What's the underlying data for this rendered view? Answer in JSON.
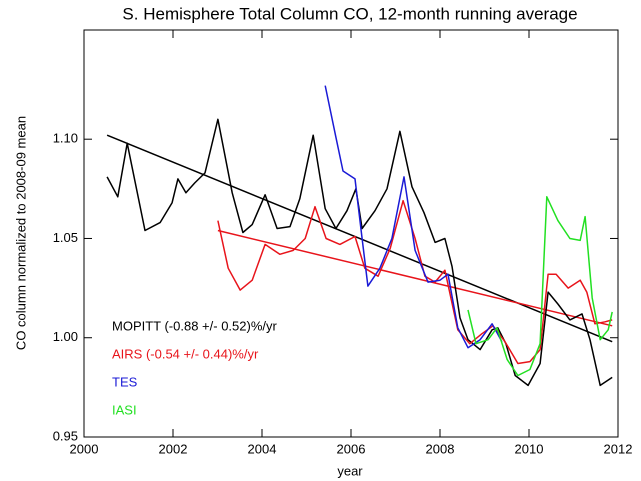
{
  "chart_data": {
    "type": "line",
    "title": "S. Hemisphere Total Column CO, 12-month running average",
    "x_label": "year",
    "y_label": "CO column normalized to 2008-09 mean",
    "xlim": [
      2000,
      2012
    ],
    "xticks": [
      2000,
      2002,
      2004,
      2006,
      2008,
      2010,
      2012
    ],
    "ylim": [
      0.95,
      1.155
    ],
    "yticks": [
      {
        "value": 0.95,
        "label": "0.95"
      },
      {
        "value": 1.0,
        "label": "1.00"
      },
      {
        "value": 1.05,
        "label": "1.05"
      },
      {
        "value": 1.1,
        "label": "1.10"
      }
    ],
    "series": [
      {
        "name": "MOPITT (-0.88 +/- 0.52)%/yr",
        "color": "#000000",
        "x": [
          2000.52,
          2000.76,
          2000.97,
          2001.37,
          2001.71,
          2001.98,
          2002.11,
          2002.29,
          2002.49,
          2002.72,
          2003.01,
          2003.33,
          2003.57,
          2003.78,
          2004.07,
          2004.34,
          2004.63,
          2004.85,
          2005.15,
          2005.42,
          2005.66,
          2005.91,
          2006.11,
          2006.25,
          2006.54,
          2006.81,
          2007.1,
          2007.37,
          2007.64,
          2007.89,
          2008.11,
          2008.27,
          2008.45,
          2008.63,
          2008.9,
          2009.17,
          2009.3,
          2009.48,
          2009.69,
          2009.98,
          2010.25,
          2010.43,
          2010.65,
          2010.92,
          2011.19,
          2011.37,
          2011.6,
          2011.87
        ],
        "values": [
          1.081,
          1.071,
          1.098,
          1.054,
          1.058,
          1.068,
          1.08,
          1.073,
          1.078,
          1.083,
          1.11,
          1.073,
          1.053,
          1.057,
          1.072,
          1.055,
          1.056,
          1.07,
          1.102,
          1.065,
          1.055,
          1.064,
          1.075,
          1.055,
          1.064,
          1.075,
          1.104,
          1.076,
          1.063,
          1.048,
          1.05,
          1.036,
          1.01,
          0.999,
          0.994,
          1.004,
          1.005,
          0.997,
          0.981,
          0.976,
          0.987,
          1.023,
          1.017,
          1.009,
          1.012,
          0.999,
          0.976,
          0.98
        ]
      },
      {
        "name": "AIRS (-0.54 +/- 0.44)%/yr",
        "color": "#e8141b",
        "x": [
          2003.01,
          2003.24,
          2003.51,
          2003.78,
          2004.07,
          2004.4,
          2004.7,
          2004.97,
          2005.19,
          2005.44,
          2005.75,
          2006.09,
          2006.31,
          2006.61,
          2006.88,
          2007.17,
          2007.44,
          2007.66,
          2007.89,
          2008.11,
          2008.4,
          2008.67,
          2008.94,
          2009.19,
          2009.46,
          2009.75,
          2010.02,
          2010.25,
          2010.43,
          2010.61,
          2010.88,
          2011.15,
          2011.3,
          2011.48,
          2011.71,
          2011.87
        ],
        "values": [
          1.059,
          1.035,
          1.024,
          1.029,
          1.047,
          1.042,
          1.044,
          1.05,
          1.066,
          1.05,
          1.047,
          1.051,
          1.035,
          1.031,
          1.045,
          1.069,
          1.05,
          1.031,
          1.028,
          1.034,
          1.004,
          0.997,
          1.002,
          1.006,
          0.998,
          0.987,
          0.988,
          0.994,
          1.032,
          1.032,
          1.025,
          1.029,
          1.023,
          1.007,
          1.008,
          1.009
        ]
      },
      {
        "name": "TES",
        "color": "#1a1ad6",
        "x": [
          2005.42,
          2005.66,
          2005.82,
          2006.09,
          2006.25,
          2006.38,
          2006.65,
          2006.92,
          2007.19,
          2007.44,
          2007.73,
          2008.0,
          2008.18,
          2008.4,
          2008.63,
          2008.9,
          2009.17,
          2009.39
        ],
        "values": [
          1.127,
          1.101,
          1.084,
          1.08,
          1.05,
          1.026,
          1.035,
          1.05,
          1.081,
          1.044,
          1.028,
          1.029,
          1.032,
          1.005,
          0.995,
          0.999,
          1.007,
          0.998
        ]
      },
      {
        "name": "IASI",
        "color": "#22e022",
        "x": [
          2008.63,
          2008.81,
          2009.08,
          2009.28,
          2009.51,
          2009.75,
          2010.02,
          2010.25,
          2010.4,
          2010.65,
          2010.92,
          2011.15,
          2011.26,
          2011.42,
          2011.6,
          2011.78,
          2011.87
        ],
        "values": [
          1.014,
          0.997,
          0.999,
          1.005,
          0.989,
          0.981,
          0.984,
          0.997,
          1.071,
          1.059,
          1.05,
          1.049,
          1.061,
          1.02,
          0.999,
          1.004,
          1.013
        ]
      }
    ],
    "trend_lines": [
      {
        "color": "#000000",
        "x": [
          2000.52,
          2011.87
        ],
        "values": [
          1.102,
          0.998
        ]
      },
      {
        "color": "#e8141b",
        "x": [
          2003.01,
          2011.87
        ],
        "values": [
          1.054,
          1.006
        ]
      }
    ]
  }
}
